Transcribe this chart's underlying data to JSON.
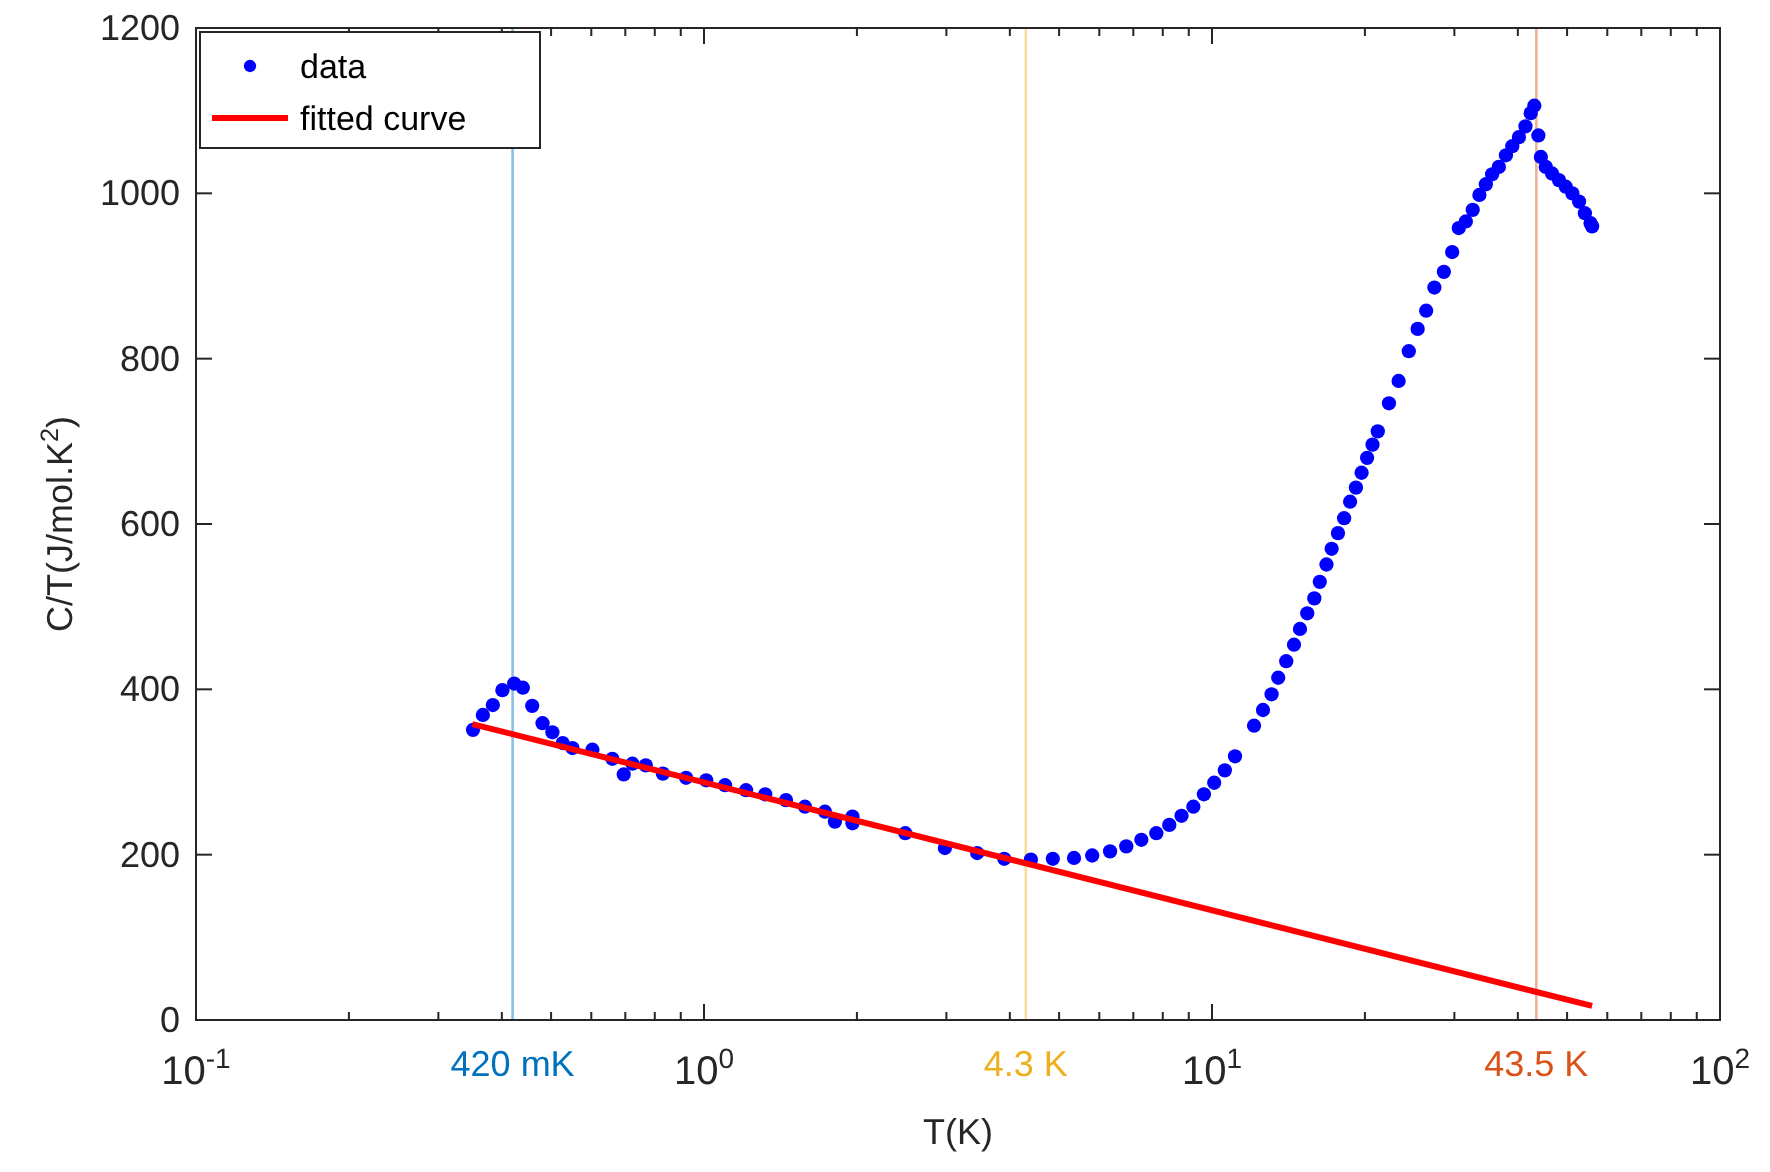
{
  "chart_data": {
    "type": "scatter",
    "xlabel": "T(K)",
    "ylabel": "C/T(J/mol.K$^{2}$)",
    "log": "x",
    "xlim": [
      0.1,
      100
    ],
    "ylim": [
      0,
      1200
    ],
    "xticks": [
      {
        "value": 0.1,
        "label": "10$^{-1}$"
      },
      {
        "value": 0.2,
        "label": null
      },
      {
        "value": 0.3,
        "label": null
      },
      {
        "value": 0.4,
        "label": null
      },
      {
        "value": 0.5,
        "label": null
      },
      {
        "value": 0.6,
        "label": null
      },
      {
        "value": 0.7,
        "label": null
      },
      {
        "value": 0.8,
        "label": null
      },
      {
        "value": 0.9,
        "label": null
      },
      {
        "value": 1,
        "label": "10$^{0}$"
      },
      {
        "value": 2,
        "label": null
      },
      {
        "value": 3,
        "label": null
      },
      {
        "value": 4,
        "label": null
      },
      {
        "value": 5,
        "label": null
      },
      {
        "value": 6,
        "label": null
      },
      {
        "value": 7,
        "label": null
      },
      {
        "value": 8,
        "label": null
      },
      {
        "value": 9,
        "label": null
      },
      {
        "value": 10,
        "label": "10$^{1}$"
      },
      {
        "value": 20,
        "label": null
      },
      {
        "value": 30,
        "label": null
      },
      {
        "value": 40,
        "label": null
      },
      {
        "value": 50,
        "label": null
      },
      {
        "value": 60,
        "label": null
      },
      {
        "value": 70,
        "label": null
      },
      {
        "value": 80,
        "label": null
      },
      {
        "value": 90,
        "label": null
      },
      {
        "value": 100,
        "label": "10$^{2}$"
      }
    ],
    "yticks": [
      0,
      200,
      400,
      600,
      800,
      1000,
      1200
    ],
    "grid": false,
    "legend": "top left",
    "marker": "circle",
    "series": [
      {
        "name": "data",
        "color": "#0000ff",
        "x": [
          0.351,
          0.367,
          0.384,
          0.401,
          0.423,
          0.44,
          0.459,
          0.481,
          0.503,
          0.527,
          0.551,
          0.603,
          0.66,
          0.695,
          0.723,
          0.768,
          0.83,
          0.922,
          1.01,
          1.1,
          1.21,
          1.32,
          1.45,
          1.58,
          1.73,
          1.81,
          1.96,
          1.96,
          2.49,
          2.98,
          3.45,
          3.9,
          4.4,
          4.86,
          5.35,
          5.81,
          6.3,
          6.78,
          7.26,
          7.77,
          8.24,
          8.71,
          9.19,
          9.64,
          10.1,
          10.6,
          11.1,
          12.1,
          12.6,
          13.1,
          13.5,
          14,
          14.5,
          14.9,
          15.4,
          15.9,
          16.3,
          16.8,
          17.2,
          17.7,
          18.2,
          18.7,
          19.2,
          19.7,
          20.2,
          20.7,
          21.2,
          22.3,
          23.3,
          24.4,
          25.4,
          26.4,
          27.4,
          28.6,
          29.7,
          30.6,
          31.6,
          32.6,
          33.6,
          34.6,
          35.6,
          36.7,
          37.9,
          39,
          40.2,
          41.4,
          42.4,
          43.1,
          43.9,
          44.4,
          45.4,
          46.7,
          48.2,
          49.7,
          51.2,
          52.8,
          54.2,
          55.6,
          56
        ],
        "values": [
          351,
          369,
          381,
          399,
          407,
          402,
          380,
          359,
          348,
          335,
          329,
          327,
          316,
          297,
          310,
          308,
          298,
          293,
          290,
          284,
          278,
          273,
          266,
          258,
          252,
          240,
          246,
          238,
          226,
          208,
          202,
          195,
          194,
          195,
          196,
          199,
          204,
          210,
          218,
          226,
          236,
          247,
          258,
          273,
          287,
          302,
          319,
          356,
          375,
          394,
          414,
          434,
          454,
          473,
          492,
          510,
          530,
          551,
          570,
          589,
          607,
          627,
          644,
          662,
          680,
          696,
          712,
          746,
          773,
          809,
          836,
          858,
          886,
          905,
          929,
          958,
          966,
          980,
          998,
          1011,
          1023,
          1032,
          1046,
          1057,
          1068,
          1081,
          1097,
          1106,
          1070,
          1044,
          1032,
          1024,
          1016,
          1008,
          1000,
          990,
          976,
          964,
          960
        ]
      },
      {
        "name": "fitted curve",
        "color": "#ff0000",
        "type": "line",
        "marker": "none",
        "line_style": "solid",
        "x": [
          0.35,
          56
        ],
        "values": [
          358,
          17
        ]
      }
    ],
    "ref_lines": [
      {
        "axis": "x",
        "value": 0.42,
        "label": "420 mK",
        "color": "#0072bd"
      },
      {
        "axis": "x",
        "value": 4.3,
        "label": "4.3 K",
        "color": "#edb120"
      },
      {
        "axis": "x",
        "value": 43.5,
        "label": "43.5 K",
        "color": "#d95319"
      }
    ]
  }
}
